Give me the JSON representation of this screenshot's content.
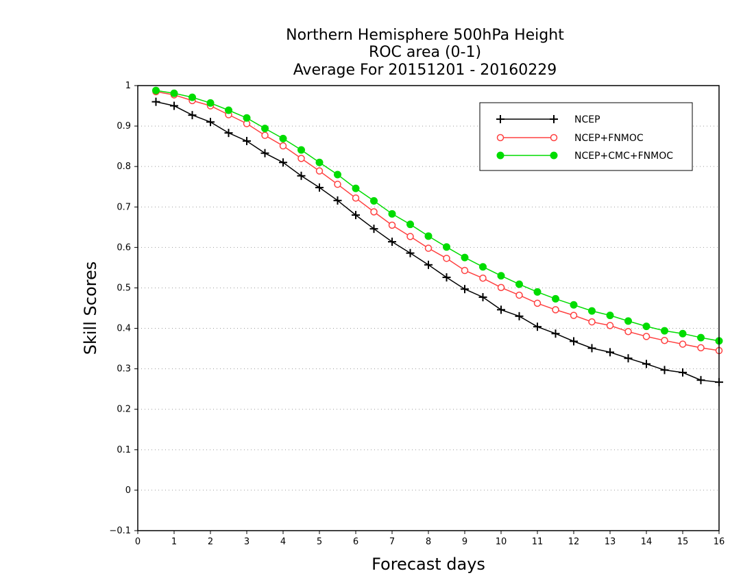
{
  "chart_data": {
    "type": "line",
    "title": [
      "Northern Hemisphere 500hPa Height",
      "ROC area (0-1)",
      "Average For 20151201 - 20160229"
    ],
    "xlabel": "Forecast days",
    "ylabel": "Skill Scores",
    "xlim": [
      0,
      16
    ],
    "ylim": [
      -0.1,
      1
    ],
    "xticks": [
      "0",
      "1",
      "2",
      "3",
      "4",
      "5",
      "6",
      "7",
      "8",
      "9",
      "10",
      "11",
      "12",
      "13",
      "14",
      "15",
      "16"
    ],
    "yticks": [
      "−0.1",
      "0",
      "0.1",
      "0.2",
      "0.3",
      "0.4",
      "0.5",
      "0.6",
      "0.7",
      "0.8",
      "0.9",
      "1"
    ],
    "grid": "horizontal dotted",
    "legend_position": "top-right",
    "x": [
      0.5,
      1,
      1.5,
      2,
      2.5,
      3,
      3.5,
      4,
      4.5,
      5,
      5.5,
      6,
      6.5,
      7,
      7.5,
      8,
      8.5,
      9,
      9.5,
      10,
      10.5,
      11,
      11.5,
      12,
      12.5,
      13,
      13.5,
      14,
      14.5,
      15,
      15.5,
      16
    ],
    "series": [
      {
        "name": "NCEP",
        "color": "#000000",
        "marker": "plus",
        "values": [
          0.96,
          0.95,
          0.927,
          0.91,
          0.883,
          0.863,
          0.833,
          0.81,
          0.777,
          0.748,
          0.716,
          0.68,
          0.646,
          0.614,
          0.586,
          0.557,
          0.526,
          0.497,
          0.477,
          0.446,
          0.43,
          0.404,
          0.387,
          0.368,
          0.351,
          0.341,
          0.326,
          0.312,
          0.297,
          0.291,
          0.272,
          0.267
        ]
      },
      {
        "name": "NCEP+FNMOC",
        "color": "#ff4040",
        "marker": "open-circle",
        "values": [
          0.985,
          0.977,
          0.963,
          0.95,
          0.928,
          0.906,
          0.877,
          0.851,
          0.82,
          0.789,
          0.756,
          0.722,
          0.688,
          0.655,
          0.627,
          0.598,
          0.573,
          0.543,
          0.524,
          0.501,
          0.482,
          0.462,
          0.446,
          0.432,
          0.416,
          0.407,
          0.392,
          0.38,
          0.37,
          0.361,
          0.352,
          0.345
        ]
      },
      {
        "name": "NCEP+CMC+FNMOC",
        "color": "#00dc00",
        "marker": "filled-circle",
        "values": [
          0.988,
          0.981,
          0.971,
          0.957,
          0.939,
          0.92,
          0.894,
          0.869,
          0.841,
          0.81,
          0.78,
          0.746,
          0.715,
          0.683,
          0.657,
          0.628,
          0.601,
          0.575,
          0.552,
          0.53,
          0.509,
          0.49,
          0.473,
          0.458,
          0.443,
          0.432,
          0.418,
          0.405,
          0.394,
          0.387,
          0.377,
          0.369
        ]
      }
    ]
  }
}
